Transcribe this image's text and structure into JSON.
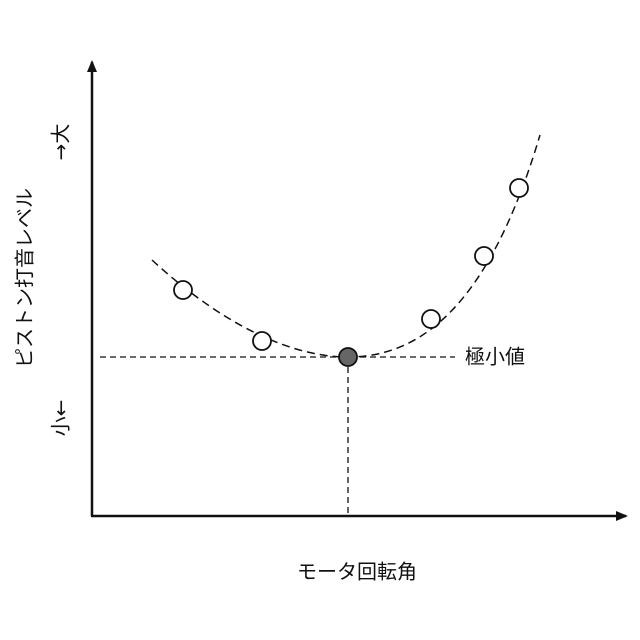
{
  "y_axis": {
    "label": "ピストン打音レベル",
    "low": "小←",
    "high": "→大"
  },
  "x_axis": {
    "label": "モータ回転角"
  },
  "annotation": "極小値"
}
